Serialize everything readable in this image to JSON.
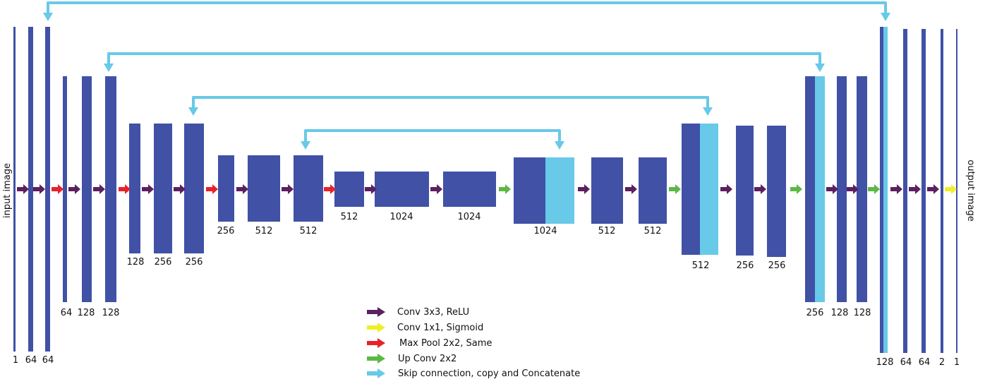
{
  "colors": {
    "block": "#4051a6",
    "copy": "#68c9e8",
    "conv": "#5b2060",
    "sigmoid": "#f1ee27",
    "pool": "#e8222a",
    "upconv": "#5cb846",
    "skip": "#68c9e8"
  },
  "side_labels": {
    "input": "input image",
    "output": "output image"
  },
  "channel_labels": [
    "1",
    "64",
    "64",
    "64",
    "128",
    "128",
    "128",
    "256",
    "256",
    "256",
    "512",
    "512",
    "512",
    "1024",
    "1024",
    "1024",
    "512",
    "512",
    "512",
    "256",
    "256",
    "256",
    "128",
    "128",
    "128",
    "64",
    "64",
    "2",
    "1"
  ],
  "legend": [
    {
      "key": "conv",
      "label": "Conv 3x3, ReLU"
    },
    {
      "key": "sigmoid",
      "label": "Conv 1x1, Sigmoid"
    },
    {
      "key": "pool",
      "label": "Max Pool 2x2, Same"
    },
    {
      "key": "upconv",
      "label": "Up  Conv 2x2"
    },
    {
      "key": "skip",
      "label": "Skip connection, copy and Concatenate"
    }
  ]
}
